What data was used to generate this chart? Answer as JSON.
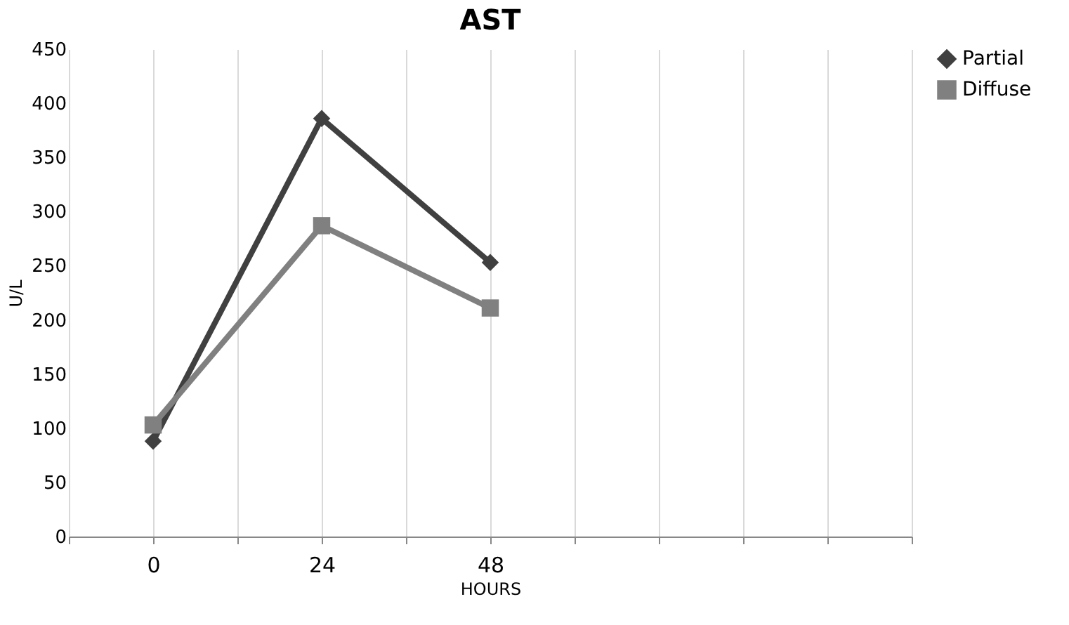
{
  "chart_data": {
    "type": "line",
    "title": "AST",
    "xlabel": "HOURS",
    "ylabel": "U/L",
    "categories": [
      "0",
      "24",
      "48",
      null,
      null
    ],
    "series": [
      {
        "name": "Partial",
        "color": "#404040",
        "marker": "diamond",
        "values": [
          88,
          386,
          253,
          null,
          null
        ]
      },
      {
        "name": "Diffuse",
        "color": "#808080",
        "marker": "square",
        "values": [
          103,
          287,
          211,
          null,
          null
        ]
      }
    ],
    "ylim": [
      0,
      450
    ],
    "yticks": [
      0,
      50,
      100,
      150,
      200,
      250,
      300,
      350,
      400,
      450
    ],
    "grid": "x",
    "legend": "right",
    "line_style": "solid"
  }
}
